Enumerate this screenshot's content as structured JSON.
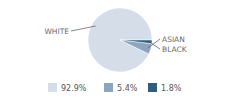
{
  "chart_data": {
    "type": "pie",
    "categories": [
      "WHITE",
      "ASIAN",
      "BLACK"
    ],
    "values": [
      92.9,
      5.4,
      1.8
    ],
    "value_labels": [
      "92.9%",
      "5.4%",
      "1.8%"
    ],
    "colors": [
      "#d5dee8",
      "#8ea5bf",
      "#2f5d7b"
    ]
  }
}
